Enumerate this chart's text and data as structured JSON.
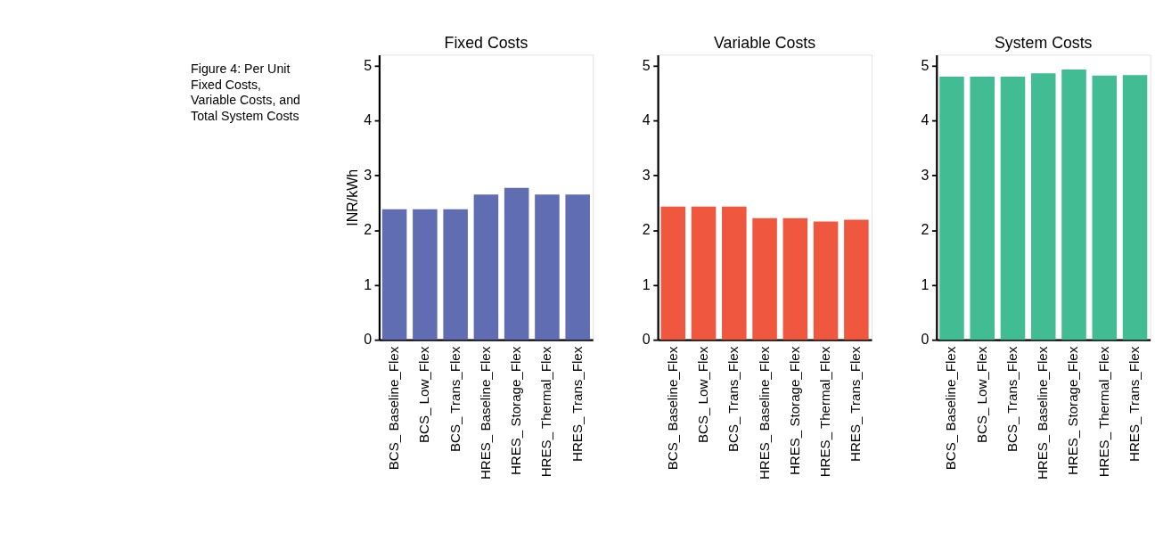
{
  "chart_data": [
    {
      "type": "bar",
      "title": "Fixed Costs",
      "ylabel": "INR/kWh",
      "annotations": [
        "Figure 4: Per Unit Fixed Costs, Variable Costs, and Total System Costs"
      ],
      "categories": [
        "BCS_ Baseline_Flex",
        "BCS_ Low_Flex",
        "BCS_ Trans_Flex",
        "HRES_ Baseline_Flex",
        "HRES_ Storage_Flex",
        "HRES_ Thermal_Flex",
        "HRES_ Trans_Flex"
      ],
      "values": [
        2.38,
        2.38,
        2.38,
        2.65,
        2.77,
        2.65,
        2.65
      ],
      "color": "#616db3",
      "ylim": [
        0,
        5.2
      ],
      "yticks": [
        0,
        1,
        2,
        3,
        4,
        5
      ],
      "grid": false
    },
    {
      "type": "bar",
      "title": "Variable Costs",
      "categories": [
        "BCS_ Baseline_Flex",
        "BCS_ Low_Flex",
        "BCS_ Trans_Flex",
        "HRES_ Baseline_Flex",
        "HRES_ Storage_Flex",
        "HRES_ Thermal_Flex",
        "HRES_ Trans_Flex"
      ],
      "values": [
        2.43,
        2.43,
        2.43,
        2.22,
        2.22,
        2.16,
        2.19
      ],
      "color": "#ef583e",
      "ylim": [
        0,
        5.2
      ],
      "yticks": [
        0,
        1,
        2,
        3,
        4,
        5
      ],
      "grid": false
    },
    {
      "type": "bar",
      "title": "System Costs",
      "categories": [
        "BCS_ Baseline_Flex",
        "BCS_ Low_Flex",
        "BCS_ Trans_Flex",
        "HRES_ Baseline_Flex",
        "HRES_ Storage_Flex",
        "HRES_ Thermal_Flex",
        "HRES_ Trans_Flex"
      ],
      "values": [
        4.8,
        4.8,
        4.8,
        4.86,
        4.93,
        4.82,
        4.83
      ],
      "color": "#42bc93",
      "ylim": [
        0,
        5.2
      ],
      "yticks": [
        0,
        1,
        2,
        3,
        4,
        5
      ],
      "grid": false
    }
  ]
}
